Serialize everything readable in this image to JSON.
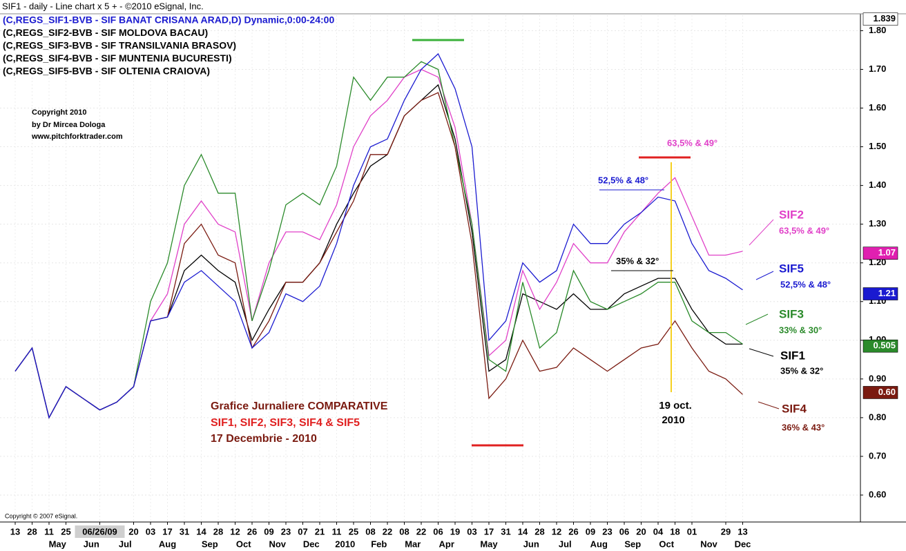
{
  "chart_data": {
    "type": "line",
    "title": "SIF1 - daily - Line chart  x 5  + - ©2010 eSignal, Inc.",
    "categories": [
      "13",
      "28",
      "11",
      "25",
      null,
      "06/26/09",
      null,
      "20",
      "03",
      "17",
      "31",
      "14",
      "28",
      "12",
      "26",
      "09",
      "23",
      "07",
      "21",
      "11",
      "25",
      "08",
      "22",
      "08",
      "22",
      "06",
      "19",
      "03",
      "17",
      "31",
      "14",
      "28",
      "12",
      "26",
      "09",
      "23",
      "06",
      "20",
      "04",
      "18",
      "01",
      null,
      "29",
      "13"
    ],
    "months": [
      {
        "label": "May",
        "first": 2
      },
      {
        "label": "Jun",
        "first": 4
      },
      {
        "label": "Jul",
        "first": 6
      },
      {
        "label": "Aug",
        "first": 8
      },
      {
        "label": "Sep",
        "first": 11
      },
      {
        "label": "Oct",
        "first": 13
      },
      {
        "label": "Nov",
        "first": 15
      },
      {
        "label": "Dec",
        "first": 17
      },
      {
        "label": "2010",
        "first": 19
      },
      {
        "label": "Feb",
        "first": 21
      },
      {
        "label": "Mar",
        "first": 23
      },
      {
        "label": "Apr",
        "first": 25
      },
      {
        "label": "May",
        "first": 27
      },
      {
        "label": "Jun",
        "first": 30
      },
      {
        "label": "Jul",
        "first": 32
      },
      {
        "label": "Aug",
        "first": 34
      },
      {
        "label": "Sep",
        "first": 36
      },
      {
        "label": "Oct",
        "first": 38
      },
      {
        "label": "Nov",
        "first": 40
      },
      {
        "label": "Dec",
        "first": 43
      }
    ],
    "series": [
      {
        "name": "(C,REGS_SIF1-BVB - SIF BANAT CRISANA ARAD,D) Dynamic,0:00-24:00",
        "legend_color": "#1a1ad0",
        "color": "#000000",
        "values": [
          0.92,
          0.98,
          0.8,
          0.88,
          0.85,
          0.82,
          0.84,
          0.88,
          1.05,
          1.06,
          1.18,
          1.22,
          1.18,
          1.15,
          1.0,
          1.08,
          1.15,
          1.15,
          1.2,
          1.3,
          1.38,
          1.45,
          1.48,
          1.58,
          1.62,
          1.66,
          1.52,
          1.28,
          0.92,
          0.95,
          1.12,
          1.1,
          1.08,
          1.12,
          1.08,
          1.08,
          1.12,
          1.14,
          1.16,
          1.16,
          1.08,
          1.02,
          0.99,
          0.99
        ]
      },
      {
        "name": "(C,REGS_SIF2-BVB - SIF MOLDOVA BACAU)",
        "legend_color": "#000000",
        "color": "#e040c8",
        "values": [
          0.92,
          0.98,
          0.8,
          0.88,
          0.85,
          0.82,
          0.84,
          0.88,
          1.05,
          1.12,
          1.3,
          1.36,
          1.3,
          1.28,
          1.05,
          1.2,
          1.28,
          1.28,
          1.26,
          1.35,
          1.5,
          1.58,
          1.62,
          1.68,
          1.7,
          1.68,
          1.55,
          1.3,
          0.96,
          1.0,
          1.18,
          1.08,
          1.15,
          1.25,
          1.2,
          1.2,
          1.28,
          1.33,
          1.38,
          1.42,
          1.32,
          1.22,
          1.22,
          1.23
        ]
      },
      {
        "name": "(C,REGS_SIF3-BVB - SIF TRANSILVANIA BRASOV)",
        "legend_color": "#000000",
        "color": "#2a8a2a",
        "values": [
          0.92,
          0.98,
          0.8,
          0.88,
          0.85,
          0.82,
          0.84,
          0.88,
          1.1,
          1.2,
          1.4,
          1.48,
          1.38,
          1.38,
          1.05,
          1.18,
          1.35,
          1.38,
          1.35,
          1.45,
          1.68,
          1.62,
          1.68,
          1.68,
          1.72,
          1.7,
          1.5,
          1.3,
          0.95,
          0.92,
          1.15,
          0.98,
          1.02,
          1.18,
          1.1,
          1.08,
          1.1,
          1.12,
          1.15,
          1.15,
          1.05,
          1.02,
          1.02,
          0.99
        ]
      },
      {
        "name": "(C,REGS_SIF4-BVB - SIF MUNTENIA BUCURESTI)",
        "legend_color": "#000000",
        "color": "#7a1a10",
        "values": [
          0.92,
          0.98,
          0.8,
          0.88,
          0.85,
          0.82,
          0.84,
          0.88,
          1.05,
          1.06,
          1.25,
          1.3,
          1.22,
          1.2,
          0.98,
          1.05,
          1.15,
          1.15,
          1.2,
          1.28,
          1.36,
          1.48,
          1.48,
          1.58,
          1.62,
          1.64,
          1.5,
          1.25,
          0.85,
          0.9,
          1.0,
          0.92,
          0.93,
          0.98,
          0.95,
          0.92,
          0.95,
          0.98,
          0.99,
          1.05,
          0.98,
          0.92,
          0.9,
          0.86
        ]
      },
      {
        "name": "(C,REGS_SIF5-BVB - SIF OLTENIA CRAIOVA)",
        "legend_color": "#000000",
        "color": "#1a1ad0",
        "values": [
          0.92,
          0.98,
          0.8,
          0.88,
          0.85,
          0.82,
          0.84,
          0.88,
          1.05,
          1.06,
          1.15,
          1.18,
          1.14,
          1.1,
          0.98,
          1.02,
          1.12,
          1.1,
          1.14,
          1.25,
          1.4,
          1.5,
          1.52,
          1.62,
          1.7,
          1.74,
          1.65,
          1.5,
          1.0,
          1.05,
          1.2,
          1.15,
          1.18,
          1.3,
          1.25,
          1.25,
          1.3,
          1.33,
          1.37,
          1.36,
          1.25,
          1.18,
          1.16,
          1.13
        ]
      }
    ],
    "ylim": [
      0.55,
      1.84
    ],
    "yticks": [
      {
        "value": 0.6,
        "label": "0.60"
      },
      {
        "value": 0.7,
        "label": "0.70"
      },
      {
        "value": 0.8,
        "label": "0.80"
      },
      {
        "value": 0.9,
        "label": "0.90"
      },
      {
        "value": 1.0,
        "label": "1.00"
      },
      {
        "value": 1.1,
        "label": "1.10"
      },
      {
        "value": 1.2,
        "label": "1.20"
      },
      {
        "value": 1.3,
        "label": "1.30"
      },
      {
        "value": 1.4,
        "label": "1.40"
      },
      {
        "value": 1.5,
        "label": "1.50"
      },
      {
        "value": 1.6,
        "label": "1.60"
      },
      {
        "value": 1.7,
        "label": "1.70"
      },
      {
        "value": 1.8,
        "label": "1.80"
      }
    ],
    "grid": true,
    "price_boxes": [
      {
        "label": "1.839",
        "color": "#ffffff",
        "text_color": "#000000",
        "at": 1.83
      },
      {
        "label": "1.07",
        "color": "#e020b0",
        "text_color": "#ffffff",
        "at": 1.225
      },
      {
        "label": "1.21",
        "color": "#1a1ad0",
        "text_color": "#ffffff",
        "at": 1.12
      },
      {
        "label": "0.505",
        "color": "#2a8a2a",
        "text_color": "#ffffff",
        "at": 0.985
      },
      {
        "label": "0.60",
        "color": "#7a1a10",
        "text_color": "#ffffff",
        "at": 0.865
      }
    ],
    "annotations": {
      "copyright": [
        "Copyright 2010",
        "by Dr Mircea Dologa",
        "www.pitchforktrader.com"
      ],
      "caption": [
        "Grafice Jurnaliere COMPARATIVE",
        "SIF1, SIF2, SIF3, SIF4 & SIF5",
        "17 Decembrie -  2010"
      ],
      "peak_sif2": "63,5% & 49°",
      "peak_sif5": "52,5% & 48°",
      "peak_sif1": "35% & 32°",
      "date": [
        "19 oct.",
        "2010"
      ],
      "right": [
        {
          "name": "SIF2",
          "text": "63,5% & 49°"
        },
        {
          "name": "SIF5",
          "text": "52,5% & 48°"
        },
        {
          "name": "SIF3",
          "text": "33% & 30°"
        },
        {
          "name": "SIF1",
          "text": "35% & 32°"
        },
        {
          "name": "SIF4",
          "text": "36% & 43°"
        }
      ],
      "esignal": "Copyright © 2007 eSignal."
    }
  }
}
